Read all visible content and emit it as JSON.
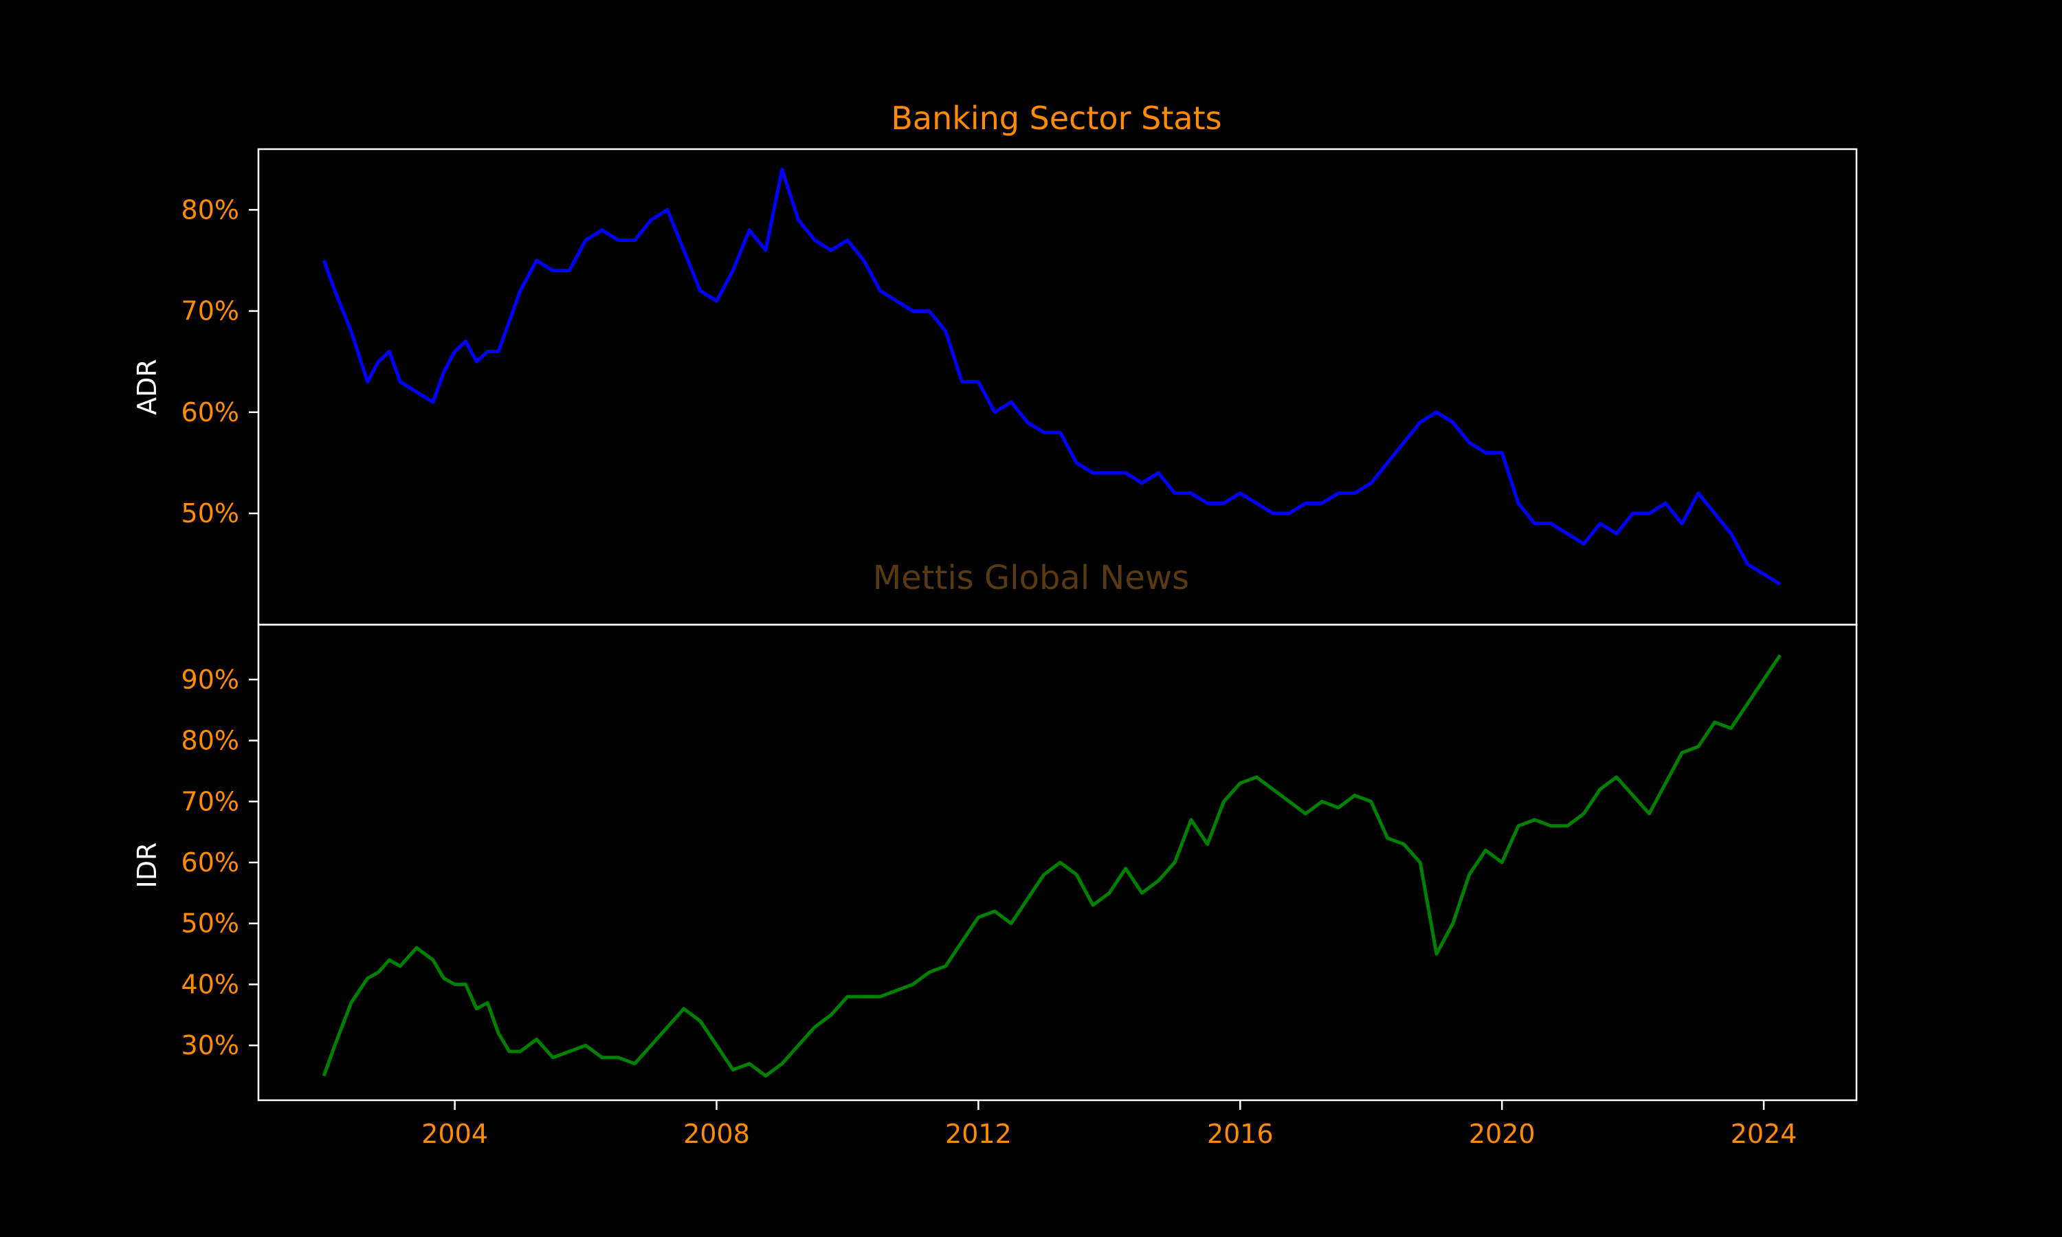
{
  "title": "Banking Sector Stats",
  "watermark": "Mettis Global News",
  "colors": {
    "background": "#000000",
    "title": "#ff8c00",
    "tick_label": "#ff8c00",
    "axis_label": "#ffffff",
    "frame": "#ffffff",
    "adr_line": "#0000ff",
    "idr_line": "#008000",
    "watermark": "#5a3a10"
  },
  "chart_data": [
    {
      "type": "line",
      "panel": "top",
      "ylabel": "ADR",
      "xlim": [
        "2001-01",
        "2025-06"
      ],
      "ylim": [
        39,
        86
      ],
      "yticks": [
        50,
        60,
        70,
        80
      ],
      "ytick_labels": [
        "50%",
        "60%",
        "70%",
        "80%"
      ],
      "xticks": [
        2004,
        2008,
        2012,
        2016,
        2020,
        2024
      ],
      "xtick_labels": [
        "2004",
        "2008",
        "2012",
        "2016",
        "2020",
        "2024"
      ],
      "grid": false,
      "series": [
        {
          "color": "#0000ff",
          "x": [
            "2002-01",
            "2002-03",
            "2002-06",
            "2002-09",
            "2002-11",
            "2003-01",
            "2003-03",
            "2003-06",
            "2003-09",
            "2003-11",
            "2004-01",
            "2004-03",
            "2004-05",
            "2004-07",
            "2004-09",
            "2004-11",
            "2005-01",
            "2005-04",
            "2005-07",
            "2005-10",
            "2006-01",
            "2006-04",
            "2006-07",
            "2006-10",
            "2007-01",
            "2007-04",
            "2007-07",
            "2007-10",
            "2008-01",
            "2008-04",
            "2008-07",
            "2008-10",
            "2009-01",
            "2009-04",
            "2009-07",
            "2009-10",
            "2010-01",
            "2010-04",
            "2010-07",
            "2010-10",
            "2011-01",
            "2011-04",
            "2011-07",
            "2011-10",
            "2012-01",
            "2012-04",
            "2012-07",
            "2012-10",
            "2013-01",
            "2013-04",
            "2013-07",
            "2013-10",
            "2014-01",
            "2014-04",
            "2014-07",
            "2014-10",
            "2015-01",
            "2015-04",
            "2015-07",
            "2015-10",
            "2016-01",
            "2016-04",
            "2016-07",
            "2016-10",
            "2017-01",
            "2017-04",
            "2017-07",
            "2017-10",
            "2018-01",
            "2018-04",
            "2018-07",
            "2018-10",
            "2019-01",
            "2019-04",
            "2019-07",
            "2019-10",
            "2020-01",
            "2020-04",
            "2020-07",
            "2020-10",
            "2021-01",
            "2021-04",
            "2021-07",
            "2021-10",
            "2022-01",
            "2022-04",
            "2022-07",
            "2022-10",
            "2023-01",
            "2023-04",
            "2023-07",
            "2023-10",
            "2024-01",
            "2024-04"
          ],
          "y": [
            75,
            72,
            68,
            63,
            65,
            66,
            63,
            62,
            61,
            64,
            66,
            67,
            65,
            66,
            66,
            69,
            72,
            75,
            74,
            74,
            77,
            78,
            77,
            77,
            79,
            80,
            76,
            72,
            71,
            74,
            78,
            76,
            84,
            79,
            77,
            76,
            77,
            75,
            72,
            71,
            70,
            70,
            68,
            63,
            63,
            60,
            61,
            59,
            58,
            58,
            55,
            54,
            54,
            54,
            53,
            54,
            52,
            52,
            51,
            51,
            52,
            51,
            50,
            50,
            51,
            51,
            52,
            52,
            53,
            55,
            57,
            59,
            60,
            59,
            57,
            56,
            56,
            51,
            49,
            49,
            48,
            47,
            49,
            48,
            50,
            50,
            51,
            49,
            52,
            50,
            48,
            45,
            44,
            43
          ]
        }
      ]
    },
    {
      "type": "line",
      "panel": "bottom",
      "ylabel": "IDR",
      "xlim": [
        "2001-01",
        "2025-06"
      ],
      "ylim": [
        21,
        99
      ],
      "yticks": [
        30,
        40,
        50,
        60,
        70,
        80,
        90
      ],
      "ytick_labels": [
        "30%",
        "40%",
        "50%",
        "60%",
        "70%",
        "80%",
        "90%"
      ],
      "xticks": [
        2004,
        2008,
        2012,
        2016,
        2020,
        2024
      ],
      "xtick_labels": [
        "2004",
        "2008",
        "2012",
        "2016",
        "2020",
        "2024"
      ],
      "grid": false,
      "series": [
        {
          "color": "#008000",
          "x": [
            "2002-01",
            "2002-03",
            "2002-06",
            "2002-09",
            "2002-11",
            "2003-01",
            "2003-03",
            "2003-06",
            "2003-09",
            "2003-11",
            "2004-01",
            "2004-03",
            "2004-05",
            "2004-07",
            "2004-09",
            "2004-11",
            "2005-01",
            "2005-04",
            "2005-07",
            "2005-10",
            "2006-01",
            "2006-04",
            "2006-07",
            "2006-10",
            "2007-01",
            "2007-04",
            "2007-07",
            "2007-10",
            "2008-01",
            "2008-04",
            "2008-07",
            "2008-10",
            "2009-01",
            "2009-04",
            "2009-07",
            "2009-10",
            "2010-01",
            "2010-04",
            "2010-07",
            "2010-10",
            "2011-01",
            "2011-04",
            "2011-07",
            "2011-10",
            "2012-01",
            "2012-04",
            "2012-07",
            "2012-10",
            "2013-01",
            "2013-04",
            "2013-07",
            "2013-10",
            "2014-01",
            "2014-04",
            "2014-07",
            "2014-10",
            "2015-01",
            "2015-04",
            "2015-07",
            "2015-10",
            "2016-01",
            "2016-04",
            "2016-07",
            "2016-10",
            "2017-01",
            "2017-04",
            "2017-07",
            "2017-10",
            "2018-01",
            "2018-04",
            "2018-07",
            "2018-10",
            "2019-01",
            "2019-04",
            "2019-07",
            "2019-10",
            "2020-01",
            "2020-04",
            "2020-07",
            "2020-10",
            "2021-01",
            "2021-04",
            "2021-07",
            "2021-10",
            "2022-01",
            "2022-04",
            "2022-07",
            "2022-10",
            "2023-01",
            "2023-04",
            "2023-07",
            "2023-10",
            "2024-01",
            "2024-04"
          ],
          "y": [
            25,
            30,
            37,
            41,
            42,
            44,
            43,
            46,
            44,
            41,
            40,
            40,
            36,
            37,
            32,
            29,
            29,
            31,
            28,
            29,
            30,
            28,
            28,
            27,
            30,
            33,
            36,
            34,
            30,
            26,
            27,
            25,
            27,
            30,
            33,
            35,
            38,
            38,
            38,
            39,
            40,
            42,
            43,
            47,
            51,
            52,
            50,
            54,
            58,
            60,
            58,
            53,
            55,
            59,
            55,
            57,
            60,
            67,
            63,
            70,
            73,
            74,
            72,
            70,
            68,
            70,
            69,
            71,
            70,
            64,
            63,
            60,
            45,
            50,
            58,
            62,
            60,
            66,
            67,
            66,
            66,
            68,
            72,
            74,
            71,
            68,
            73,
            78,
            79,
            83,
            82,
            86,
            90,
            94
          ]
        }
      ]
    }
  ]
}
